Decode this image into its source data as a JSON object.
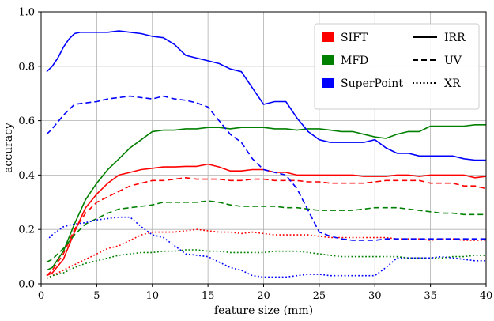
{
  "chart_data": {
    "type": "line",
    "xlabel": "feature size (mm)",
    "ylabel": "accuracy",
    "xlim": [
      0,
      40
    ],
    "ylim": [
      0,
      1.0
    ],
    "xticks": [
      "0",
      "5",
      "10",
      "15",
      "20",
      "25",
      "30",
      "35",
      "40"
    ],
    "yticks": [
      "0.0",
      "0.2",
      "0.4",
      "0.6",
      "0.8",
      "1.0"
    ],
    "grid": true,
    "legend_position": "top-right",
    "legend_methods": [
      {
        "label": "SIFT",
        "color": "#ff0000"
      },
      {
        "label": "MFD",
        "color": "#008000"
      },
      {
        "label": "SuperPoint",
        "color": "#0000ff"
      }
    ],
    "legend_styles": [
      {
        "label": "IRR",
        "style": "solid"
      },
      {
        "label": "UV",
        "style": "dashed"
      },
      {
        "label": "XR",
        "style": "dotted"
      }
    ],
    "series": [
      {
        "method": "SIFT",
        "style": "solid",
        "color": "#ff0000",
        "x": [
          0.5,
          1,
          2,
          3,
          4,
          5,
          6,
          7,
          8,
          9,
          10,
          11,
          12,
          13,
          14,
          15,
          16,
          17,
          18,
          19,
          20,
          21,
          22,
          23,
          24,
          25,
          26,
          27,
          28,
          29,
          30,
          31,
          32,
          33,
          34,
          35,
          36,
          37,
          38,
          39,
          40
        ],
        "y": [
          0.03,
          0.04,
          0.09,
          0.19,
          0.28,
          0.33,
          0.37,
          0.4,
          0.41,
          0.42,
          0.425,
          0.43,
          0.43,
          0.432,
          0.432,
          0.44,
          0.43,
          0.415,
          0.415,
          0.42,
          0.42,
          0.41,
          0.41,
          0.4,
          0.4,
          0.4,
          0.4,
          0.4,
          0.4,
          0.395,
          0.395,
          0.395,
          0.4,
          0.4,
          0.395,
          0.4,
          0.4,
          0.4,
          0.4,
          0.39,
          0.395
        ]
      },
      {
        "method": "SIFT",
        "style": "dashed",
        "color": "#ff0000",
        "x": [
          0.5,
          1,
          2,
          3,
          4,
          5,
          6,
          7,
          8,
          9,
          10,
          11,
          12,
          13,
          14,
          15,
          16,
          17,
          18,
          19,
          20,
          21,
          22,
          23,
          24,
          25,
          26,
          27,
          28,
          29,
          30,
          31,
          32,
          33,
          34,
          35,
          36,
          37,
          38,
          39,
          40
        ],
        "y": [
          0.03,
          0.05,
          0.11,
          0.2,
          0.26,
          0.3,
          0.32,
          0.34,
          0.36,
          0.37,
          0.38,
          0.38,
          0.385,
          0.39,
          0.385,
          0.385,
          0.385,
          0.38,
          0.38,
          0.385,
          0.385,
          0.38,
          0.38,
          0.38,
          0.375,
          0.375,
          0.37,
          0.37,
          0.37,
          0.37,
          0.375,
          0.38,
          0.38,
          0.38,
          0.38,
          0.37,
          0.37,
          0.37,
          0.36,
          0.36,
          0.35
        ]
      },
      {
        "method": "SIFT",
        "style": "dotted",
        "color": "#ff0000",
        "x": [
          0.5,
          1,
          2,
          3,
          4,
          5,
          6,
          7,
          8,
          9,
          10,
          11,
          12,
          13,
          14,
          15,
          16,
          17,
          18,
          19,
          20,
          21,
          22,
          23,
          24,
          25,
          26,
          27,
          28,
          29,
          30,
          31,
          32,
          33,
          34,
          35,
          36,
          37,
          38,
          39,
          40
        ],
        "y": [
          0.02,
          0.03,
          0.05,
          0.07,
          0.09,
          0.11,
          0.13,
          0.14,
          0.16,
          0.18,
          0.19,
          0.19,
          0.19,
          0.195,
          0.2,
          0.195,
          0.19,
          0.19,
          0.185,
          0.19,
          0.185,
          0.18,
          0.18,
          0.18,
          0.18,
          0.175,
          0.17,
          0.17,
          0.17,
          0.17,
          0.17,
          0.17,
          0.165,
          0.165,
          0.165,
          0.16,
          0.165,
          0.165,
          0.16,
          0.16,
          0.16
        ]
      },
      {
        "method": "MFD",
        "style": "solid",
        "color": "#008000",
        "x": [
          0.5,
          1,
          2,
          3,
          4,
          5,
          6,
          7,
          8,
          9,
          10,
          11,
          12,
          13,
          14,
          15,
          16,
          17,
          18,
          19,
          20,
          21,
          22,
          23,
          24,
          25,
          26,
          27,
          28,
          29,
          30,
          31,
          32,
          33,
          34,
          35,
          36,
          37,
          38,
          39,
          40
        ],
        "y": [
          0.05,
          0.06,
          0.12,
          0.22,
          0.31,
          0.37,
          0.42,
          0.46,
          0.5,
          0.53,
          0.56,
          0.565,
          0.565,
          0.57,
          0.57,
          0.575,
          0.575,
          0.57,
          0.575,
          0.575,
          0.575,
          0.57,
          0.57,
          0.565,
          0.57,
          0.57,
          0.565,
          0.56,
          0.56,
          0.55,
          0.54,
          0.535,
          0.55,
          0.56,
          0.56,
          0.58,
          0.58,
          0.58,
          0.58,
          0.585,
          0.585
        ]
      },
      {
        "method": "MFD",
        "style": "dashed",
        "color": "#008000",
        "x": [
          0.5,
          1,
          2,
          3,
          4,
          5,
          6,
          7,
          8,
          9,
          10,
          11,
          12,
          13,
          14,
          15,
          16,
          17,
          18,
          19,
          20,
          21,
          22,
          23,
          24,
          25,
          26,
          27,
          28,
          29,
          30,
          31,
          32,
          33,
          34,
          35,
          36,
          37,
          38,
          39,
          40
        ],
        "y": [
          0.08,
          0.09,
          0.13,
          0.18,
          0.22,
          0.24,
          0.26,
          0.275,
          0.28,
          0.285,
          0.29,
          0.3,
          0.3,
          0.3,
          0.3,
          0.305,
          0.3,
          0.29,
          0.285,
          0.285,
          0.285,
          0.285,
          0.28,
          0.28,
          0.275,
          0.27,
          0.27,
          0.27,
          0.27,
          0.275,
          0.28,
          0.28,
          0.28,
          0.275,
          0.27,
          0.265,
          0.26,
          0.26,
          0.255,
          0.255,
          0.255
        ]
      },
      {
        "method": "MFD",
        "style": "dotted",
        "color": "#008000",
        "x": [
          0.5,
          1,
          2,
          3,
          4,
          5,
          6,
          7,
          8,
          9,
          10,
          11,
          12,
          13,
          14,
          15,
          16,
          17,
          18,
          19,
          20,
          21,
          22,
          23,
          24,
          25,
          26,
          27,
          28,
          29,
          30,
          31,
          32,
          33,
          34,
          35,
          36,
          37,
          38,
          39,
          40
        ],
        "y": [
          0.02,
          0.03,
          0.04,
          0.06,
          0.075,
          0.085,
          0.095,
          0.105,
          0.11,
          0.115,
          0.115,
          0.12,
          0.12,
          0.125,
          0.125,
          0.12,
          0.12,
          0.115,
          0.115,
          0.115,
          0.115,
          0.12,
          0.12,
          0.12,
          0.115,
          0.11,
          0.105,
          0.1,
          0.1,
          0.1,
          0.1,
          0.1,
          0.1,
          0.095,
          0.095,
          0.095,
          0.095,
          0.1,
          0.1,
          0.105,
          0.105
        ]
      },
      {
        "method": "SuperPoint",
        "style": "solid",
        "color": "#0000ff",
        "x": [
          0.5,
          1,
          1.5,
          2,
          2.5,
          3,
          3.5,
          4,
          5,
          6,
          7,
          8,
          9,
          10,
          11,
          12,
          13,
          14,
          15,
          16,
          17,
          18,
          19,
          20,
          21,
          22,
          23,
          24,
          25,
          26,
          27,
          28,
          29,
          30,
          31,
          32,
          33,
          34,
          35,
          36,
          37,
          38,
          39,
          40
        ],
        "y": [
          0.78,
          0.8,
          0.83,
          0.87,
          0.9,
          0.92,
          0.925,
          0.925,
          0.925,
          0.925,
          0.93,
          0.925,
          0.92,
          0.91,
          0.905,
          0.88,
          0.84,
          0.83,
          0.82,
          0.81,
          0.79,
          0.78,
          0.72,
          0.66,
          0.67,
          0.67,
          0.61,
          0.56,
          0.53,
          0.52,
          0.52,
          0.52,
          0.52,
          0.53,
          0.5,
          0.48,
          0.48,
          0.47,
          0.47,
          0.47,
          0.47,
          0.46,
          0.455,
          0.455
        ]
      },
      {
        "method": "SuperPoint",
        "style": "dashed",
        "color": "#0000ff",
        "x": [
          0.5,
          1,
          2,
          3,
          4,
          5,
          6,
          7,
          8,
          9,
          10,
          11,
          12,
          13,
          14,
          15,
          16,
          17,
          18,
          19,
          20,
          21,
          22,
          23,
          24,
          25,
          26,
          27,
          28,
          29,
          30,
          31,
          32,
          33,
          34,
          35,
          36,
          37,
          38,
          39,
          40
        ],
        "y": [
          0.55,
          0.57,
          0.62,
          0.66,
          0.665,
          0.67,
          0.68,
          0.685,
          0.69,
          0.685,
          0.68,
          0.69,
          0.68,
          0.675,
          0.665,
          0.65,
          0.6,
          0.55,
          0.52,
          0.46,
          0.42,
          0.41,
          0.4,
          0.35,
          0.27,
          0.19,
          0.175,
          0.165,
          0.16,
          0.16,
          0.16,
          0.165,
          0.165,
          0.165,
          0.165,
          0.165,
          0.165,
          0.165,
          0.165,
          0.165,
          0.165
        ]
      },
      {
        "method": "SuperPoint",
        "style": "dotted",
        "color": "#0000ff",
        "x": [
          0.5,
          1,
          2,
          3,
          4,
          5,
          6,
          7,
          8,
          9,
          10,
          11,
          12,
          13,
          14,
          15,
          16,
          17,
          18,
          19,
          20,
          21,
          22,
          23,
          24,
          25,
          26,
          27,
          28,
          29,
          30,
          31,
          32,
          33,
          34,
          35,
          36,
          37,
          38,
          39,
          40
        ],
        "y": [
          0.16,
          0.18,
          0.21,
          0.22,
          0.225,
          0.235,
          0.24,
          0.245,
          0.245,
          0.21,
          0.18,
          0.17,
          0.14,
          0.11,
          0.105,
          0.1,
          0.08,
          0.06,
          0.05,
          0.03,
          0.025,
          0.025,
          0.025,
          0.03,
          0.035,
          0.035,
          0.03,
          0.03,
          0.03,
          0.03,
          0.03,
          0.06,
          0.095,
          0.095,
          0.095,
          0.095,
          0.1,
          0.095,
          0.09,
          0.085,
          0.085
        ]
      }
    ]
  }
}
